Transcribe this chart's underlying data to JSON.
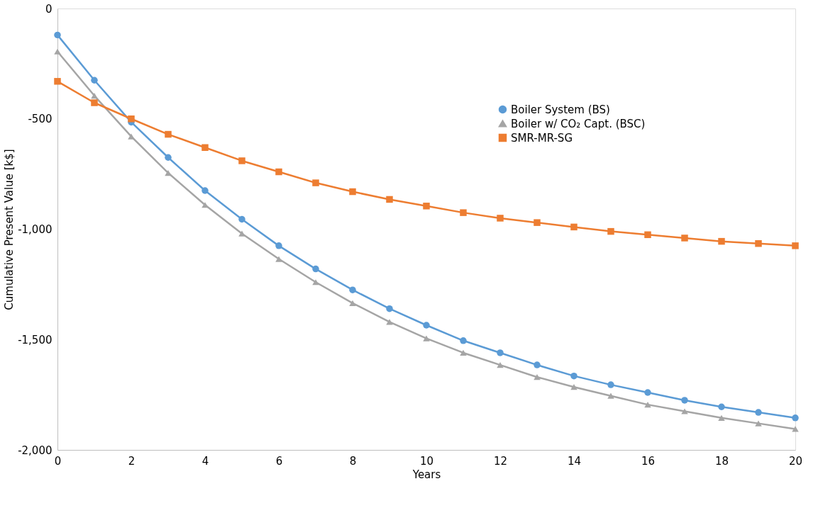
{
  "chart_data": {
    "type": "line",
    "xlabel": "Years",
    "ylabel": "Cumulative Present Value [k$]",
    "x": [
      0,
      1,
      2,
      3,
      4,
      5,
      6,
      7,
      8,
      9,
      10,
      11,
      12,
      13,
      14,
      15,
      16,
      17,
      18,
      19,
      20
    ],
    "xlim": [
      0,
      20
    ],
    "xticks": [
      0,
      2,
      4,
      6,
      8,
      10,
      12,
      14,
      16,
      18,
      20
    ],
    "ylim": [
      -2000,
      0
    ],
    "yticks": [
      {
        "value": -2000,
        "label": "-2,000"
      },
      {
        "value": -1500,
        "label": "-1,500"
      },
      {
        "value": -1000,
        "label": "-1,000"
      },
      -500,
      0
    ],
    "grid": false,
    "legend": "right",
    "line_style": "solid",
    "series": [
      {
        "name": "Boiler System (BS)",
        "color": "#5b9bd5",
        "marker": "circle",
        "values": [
          -120,
          -325,
          -515,
          -675,
          -825,
          -955,
          -1075,
          -1180,
          -1275,
          -1360,
          -1435,
          -1505,
          -1560,
          -1615,
          -1665,
          -1705,
          -1740,
          -1775,
          -1805,
          -1830,
          -1855
        ]
      },
      {
        "name": "Boiler w/ CO₂ Capt. (BSC)",
        "color": "#a5a5a5",
        "marker": "triangle",
        "values": [
          -195,
          -395,
          -580,
          -745,
          -890,
          -1020,
          -1135,
          -1240,
          -1335,
          -1420,
          -1495,
          -1560,
          -1615,
          -1670,
          -1715,
          -1755,
          -1795,
          -1825,
          -1855,
          -1880,
          -1905
        ]
      },
      {
        "name": "SMR-MR-SG",
        "color": "#ed7d31",
        "marker": "square",
        "values": [
          -330,
          -427,
          -500,
          -570,
          -630,
          -690,
          -740,
          -790,
          -830,
          -865,
          -895,
          -925,
          -950,
          -970,
          -990,
          -1010,
          -1025,
          -1040,
          -1055,
          -1065,
          -1075
        ]
      }
    ]
  }
}
